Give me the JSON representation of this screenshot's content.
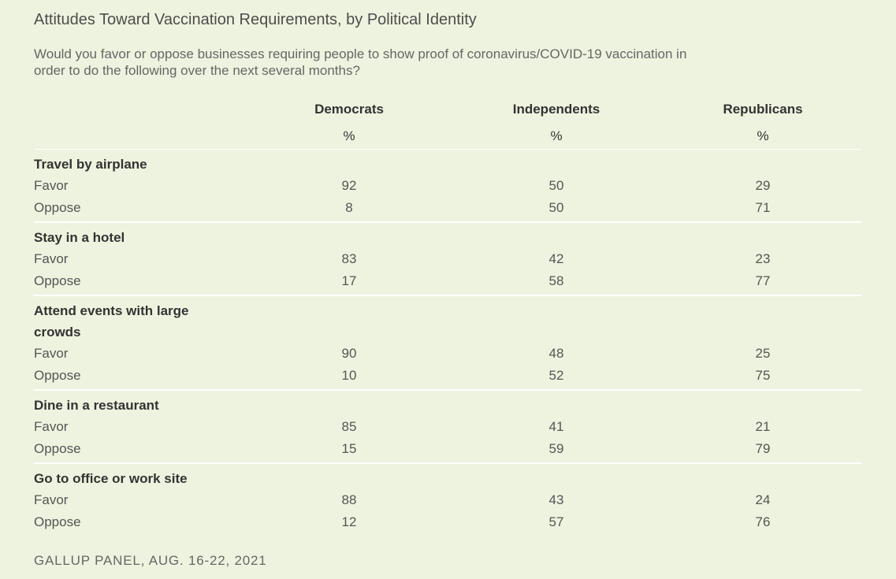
{
  "chart_data": {
    "type": "table",
    "title": "Attitudes Toward Vaccination Requirements, by Political Identity",
    "subtitle": "Would you favor or oppose businesses requiring people to show proof of coronavirus/COVID-19 vaccination in order to do the following over the next several months?",
    "columns": [
      "Democrats",
      "Independents",
      "Republicans"
    ],
    "unit": "%",
    "groups": [
      {
        "label": "Travel by airplane",
        "rows": [
          {
            "label": "Favor",
            "values": [
              92,
              50,
              29
            ]
          },
          {
            "label": "Oppose",
            "values": [
              8,
              50,
              71
            ]
          }
        ]
      },
      {
        "label": "Stay in a hotel",
        "rows": [
          {
            "label": "Favor",
            "values": [
              83,
              42,
              23
            ]
          },
          {
            "label": "Oppose",
            "values": [
              17,
              58,
              77
            ]
          }
        ]
      },
      {
        "label": "Attend events with large crowds",
        "rows": [
          {
            "label": "Favor",
            "values": [
              90,
              48,
              25
            ]
          },
          {
            "label": "Oppose",
            "values": [
              10,
              52,
              75
            ]
          }
        ]
      },
      {
        "label": "Dine in a restaurant",
        "rows": [
          {
            "label": "Favor",
            "values": [
              85,
              41,
              21
            ]
          },
          {
            "label": "Oppose",
            "values": [
              15,
              59,
              79
            ]
          }
        ]
      },
      {
        "label": "Go to office or work site",
        "rows": [
          {
            "label": "Favor",
            "values": [
              88,
              43,
              24
            ]
          },
          {
            "label": "Oppose",
            "values": [
              12,
              57,
              76
            ]
          }
        ]
      }
    ],
    "source": "GALLUP PANEL, AUG. 16-22, 2021"
  }
}
